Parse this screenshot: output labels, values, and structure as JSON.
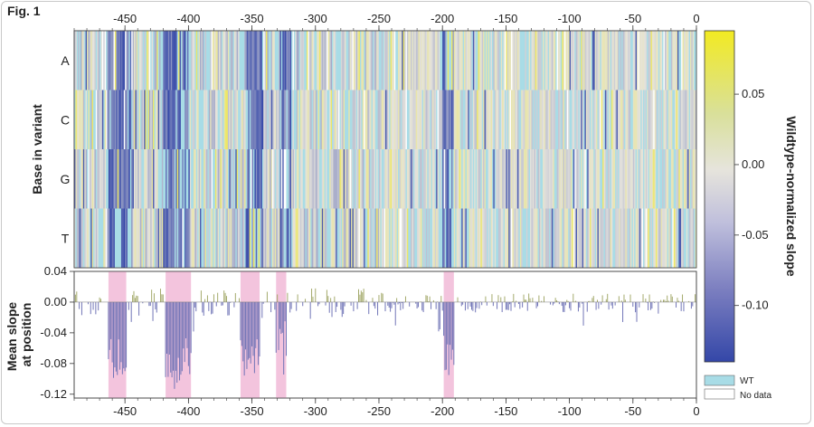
{
  "figure": {
    "label": "Fig. 1"
  },
  "chart_data": [
    {
      "type": "heatmap",
      "title": "",
      "ylabel": "Base in variant",
      "rows": [
        "A",
        "C",
        "G",
        "T"
      ],
      "x_range": [
        -490,
        0
      ],
      "x_ticks": [
        -450,
        -400,
        -350,
        -300,
        -250,
        -200,
        -150,
        -100,
        -50,
        0
      ],
      "x_tick_labels": [
        "-450",
        "-400",
        "-350",
        "-300",
        "-250",
        "-200",
        "-150",
        "-100",
        "-50",
        "0"
      ],
      "colorbar": {
        "label": "Wildtype-normalized slope",
        "range": [
          -0.14,
          0.095
        ],
        "ticks": [
          0.05,
          0.0,
          -0.05,
          -0.1
        ],
        "tick_labels": [
          "0.05",
          "0.00",
          "-0.05",
          "-0.10"
        ],
        "colors": {
          "max": "#f2ea22",
          "mid": "#e5e3dc",
          "min": "#3447a8"
        }
      },
      "legend": [
        {
          "label": "WT",
          "color": "#a8dce6"
        },
        {
          "label": "No data",
          "color": "#ffffff"
        }
      ],
      "strong_negative_regions": [
        [
          -465,
          -445
        ],
        [
          -420,
          -400
        ],
        [
          -355,
          -342
        ],
        [
          -328,
          -320
        ],
        [
          -200,
          -192
        ]
      ]
    },
    {
      "type": "bar",
      "title": "",
      "ylabel": "Mean slope at position",
      "xlim": [
        -490,
        0
      ],
      "ylim": [
        -0.125,
        0.04
      ],
      "yticks": [
        0.04,
        0.0,
        -0.04,
        -0.08,
        -0.12
      ],
      "ytick_labels": [
        "0.04",
        "0.00",
        "-0.04",
        "-0.08",
        "-0.12"
      ],
      "colors": {
        "positive": "#a3a96a",
        "negative": "#6f73b6",
        "highlight": "#f3c4dd"
      },
      "highlight_regions": [
        [
          -463,
          -449
        ],
        [
          -418,
          -398
        ],
        [
          -359,
          -344
        ],
        [
          -331,
          -323
        ],
        [
          -199,
          -191
        ]
      ],
      "series": [
        {
          "name": "",
          "positions": [
            -458,
            -456,
            -454,
            -452,
            -450,
            -413,
            -411,
            -409,
            -407,
            -405,
            -403,
            -401,
            -353,
            -351,
            -349,
            -347,
            -328,
            -326,
            -324,
            -197,
            -195,
            -193,
            -248,
            -290,
            -330,
            -370,
            -420,
            -440,
            -470,
            -150,
            -100,
            -50,
            -30,
            -10
          ],
          "values": [
            -0.085,
            -0.095,
            -0.088,
            -0.094,
            -0.09,
            -0.098,
            -0.113,
            -0.105,
            -0.102,
            -0.09,
            -0.078,
            -0.06,
            -0.075,
            -0.08,
            -0.07,
            -0.06,
            -0.035,
            -0.04,
            -0.025,
            -0.088,
            -0.095,
            -0.075,
            0.012,
            0.008,
            0.01,
            0.008,
            0.01,
            0.008,
            0.006,
            -0.01,
            -0.008,
            -0.006,
            -0.015,
            -0.012
          ]
        }
      ]
    }
  ]
}
